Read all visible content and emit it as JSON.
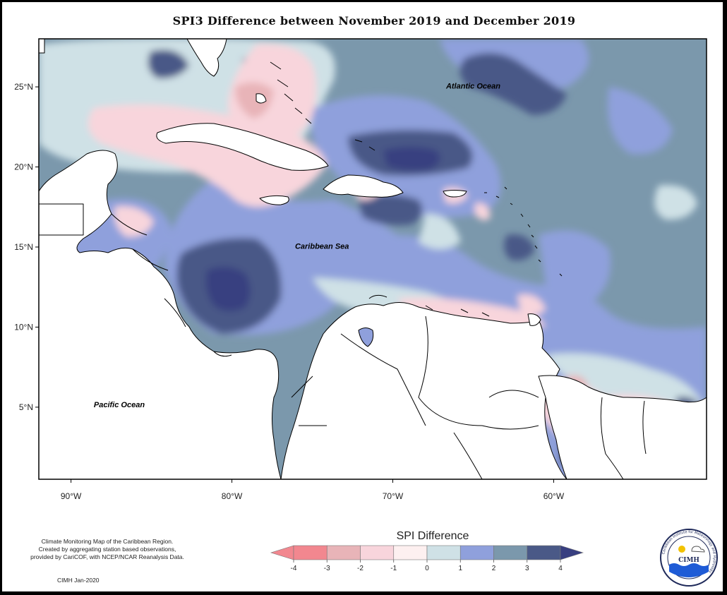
{
  "title": "SPI3 Difference between November 2019 and December 2019",
  "map": {
    "lon_range": [
      -92,
      -50.5
    ],
    "lat_range": [
      0.5,
      28
    ],
    "lon_ticks": [
      {
        "value": -90,
        "label": "90°W"
      },
      {
        "value": -80,
        "label": "80°W"
      },
      {
        "value": -70,
        "label": "70°W"
      },
      {
        "value": -60,
        "label": "60°W"
      }
    ],
    "lat_ticks": [
      {
        "value": 25,
        "label": "25°N"
      },
      {
        "value": 20,
        "label": "20°N"
      },
      {
        "value": 15,
        "label": "15°N"
      },
      {
        "value": 10,
        "label": "10°N"
      },
      {
        "value": 5,
        "label": "5°N"
      }
    ],
    "regions": [
      {
        "label": "Atlantic Ocean",
        "lon": -65.0,
        "lat": 24.9
      },
      {
        "label": "Caribbean Sea",
        "lon": -74.4,
        "lat": 14.9
      },
      {
        "label": "Pacific Ocean",
        "lon": -87.0,
        "lat": 5.0
      }
    ]
  },
  "legend": {
    "title": "SPI Difference",
    "ticks": [
      "-4",
      "-3",
      "-2",
      "-1",
      "0",
      "1",
      "2",
      "3",
      "4"
    ],
    "colors": [
      "#f2878f",
      "#e8b4b8",
      "#f8d5dc",
      "#fdf0f0",
      "#cfe1e6",
      "#8fa0dc",
      "#7b98ac",
      "#4a5987",
      "#383f80"
    ]
  },
  "note": {
    "lines": [
      "Climate Monitoring Map of the Caribbean Region.",
      "Created by aggregating station based observations,",
      "provided by CariCOF, with NCEP/NCAR Reanalysis Data."
    ],
    "credit": "CIMH Jan-2020"
  },
  "logo": {
    "text": "CIMH",
    "ring_text": "Caribbean Institute for Meteorology and Hydrology"
  }
}
